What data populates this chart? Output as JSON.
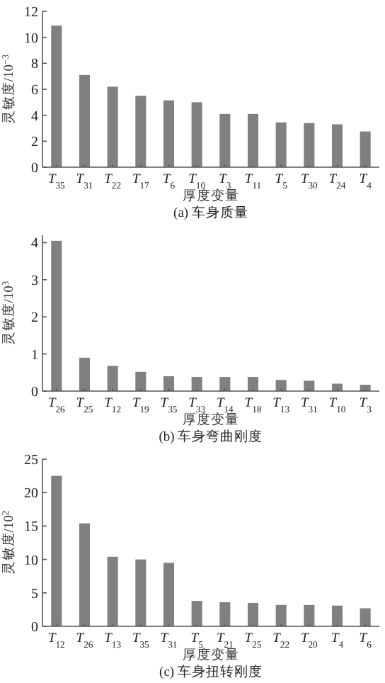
{
  "chart_data": [
    {
      "type": "bar",
      "title": "(a)  车身质量",
      "xlabel": "厚度变量",
      "ylabel": "灵敏度/10$^{−3}$",
      "categories": [
        "T$_{35}$",
        "T$_{31}$",
        "T$_{22}$",
        "T$_{17}$",
        "T$_{6}$",
        "T$_{10}$",
        "T$_{3}$",
        "T$_{11}$",
        "T$_{5}$",
        "T$_{30}$",
        "T$_{24}$",
        "T$_{4}$"
      ],
      "values": [
        10.9,
        7.1,
        6.2,
        5.5,
        5.15,
        5.0,
        4.1,
        4.1,
        3.45,
        3.4,
        3.3,
        2.75
      ],
      "color": "#808080",
      "ylim": [
        0,
        12
      ],
      "yticks": [
        0,
        2,
        4,
        6,
        8,
        10,
        12
      ],
      "grid": false
    },
    {
      "type": "bar",
      "title": "(b)  车身弯曲刚度",
      "xlabel": "厚度变量",
      "ylabel": "灵敏度/10$^{3}$",
      "categories": [
        "T$_{26}$",
        "T$_{25}$",
        "T$_{12}$",
        "T$_{19}$",
        "T$_{35}$",
        "T$_{33}$",
        "T$_{14}$",
        "T$_{18}$",
        "T$_{13}$",
        "T$_{31}$",
        "T$_{10}$",
        "T$_{3}$"
      ],
      "values": [
        4.05,
        0.9,
        0.68,
        0.52,
        0.4,
        0.38,
        0.38,
        0.38,
        0.3,
        0.28,
        0.2,
        0.17
      ],
      "color": "#808080",
      "ylim": [
        0,
        4.2
      ],
      "yticks": [
        0,
        1,
        2,
        3,
        4
      ],
      "grid": false
    },
    {
      "type": "bar",
      "title": "(c)  车身扭转刚度",
      "xlabel": "厚度变量",
      "ylabel": "灵敏度/10$^{2}$",
      "categories": [
        "T$_{12}$",
        "T$_{26}$",
        "T$_{13}$",
        "T$_{35}$",
        "T$_{31}$",
        "T$_{5}$",
        "T$_{21}$",
        "T$_{25}$",
        "T$_{22}$",
        "T$_{20}$",
        "T$_{4}$",
        "T$_{6}$"
      ],
      "values": [
        22.5,
        15.4,
        10.4,
        10.0,
        9.5,
        3.8,
        3.6,
        3.5,
        3.2,
        3.2,
        3.1,
        2.7
      ],
      "color": "#808080",
      "ylim": [
        0,
        25
      ],
      "yticks": [
        0,
        5,
        10,
        15,
        20,
        25
      ],
      "grid": false
    }
  ]
}
